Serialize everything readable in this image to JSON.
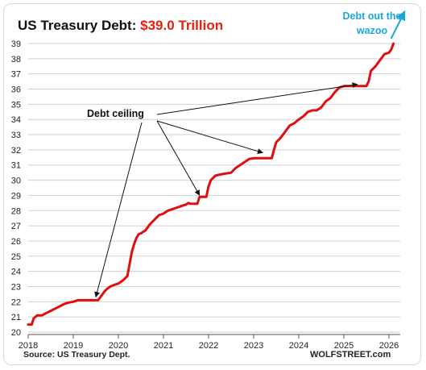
{
  "title": {
    "prefix": "US Treasury Debt: ",
    "value": "$39.0 Trillion"
  },
  "source": "Source: US Treasury Dept.",
  "brand": "WOLFSTREET.com",
  "colors": {
    "line": "#e00e0e",
    "title_value": "#e8200f",
    "wazoo": "#1aa8d8",
    "arrow": "#111111",
    "grid": "#d0d0d0"
  },
  "chart_data": {
    "type": "line",
    "title": "US Treasury Debt: $39.0 Trillion",
    "xlabel": "",
    "ylabel": "",
    "xlim": [
      2018,
      2026.25
    ],
    "ylim": [
      20,
      39
    ],
    "xticks": [
      2018,
      2019,
      2020,
      2021,
      2022,
      2023,
      2024,
      2025,
      2026
    ],
    "yticks": [
      20,
      21,
      22,
      23,
      24,
      25,
      26,
      27,
      28,
      29,
      30,
      31,
      32,
      33,
      34,
      35,
      36,
      37,
      38,
      39
    ],
    "grid": "horizontal",
    "series": [
      {
        "x": [
          2018.0,
          2018.08,
          2018.12,
          2018.2,
          2018.3,
          2018.4,
          2018.5,
          2018.6,
          2018.7,
          2018.8,
          2018.9,
          2019.0,
          2019.1,
          2019.2,
          2019.35,
          2019.55,
          2019.6,
          2019.7,
          2019.75,
          2019.82,
          2019.9,
          2020.0,
          2020.1,
          2020.2,
          2020.25,
          2020.3,
          2020.35,
          2020.4,
          2020.45,
          2020.5,
          2020.6,
          2020.7,
          2020.8,
          2020.9,
          2021.0,
          2021.1,
          2021.2,
          2021.3,
          2021.4,
          2021.5,
          2021.55,
          2021.6,
          2021.75,
          2021.8,
          2021.85,
          2021.95,
          2022.0,
          2022.05,
          2022.15,
          2022.3,
          2022.5,
          2022.6,
          2022.7,
          2022.8,
          2022.9,
          2023.0,
          2023.2,
          2023.4,
          2023.45,
          2023.5,
          2023.6,
          2023.7,
          2023.8,
          2023.9,
          2024.0,
          2024.1,
          2024.2,
          2024.3,
          2024.4,
          2024.5,
          2024.6,
          2024.7,
          2024.8,
          2024.9,
          2025.0,
          2025.2,
          2025.5,
          2025.55,
          2025.6,
          2025.7,
          2025.8,
          2025.9,
          2026.0,
          2026.05,
          2026.1
        ],
        "y": [
          20.5,
          20.5,
          20.9,
          21.1,
          21.1,
          21.25,
          21.4,
          21.55,
          21.7,
          21.85,
          21.95,
          22.0,
          22.1,
          22.1,
          22.1,
          22.1,
          22.3,
          22.7,
          22.85,
          23.0,
          23.1,
          23.2,
          23.4,
          23.7,
          24.5,
          25.3,
          25.8,
          26.2,
          26.45,
          26.5,
          26.7,
          27.1,
          27.4,
          27.7,
          27.8,
          28.0,
          28.1,
          28.2,
          28.3,
          28.4,
          28.5,
          28.45,
          28.45,
          28.9,
          28.9,
          28.9,
          29.6,
          30.0,
          30.3,
          30.4,
          30.5,
          30.8,
          31.0,
          31.2,
          31.4,
          31.45,
          31.45,
          31.45,
          32.0,
          32.5,
          32.8,
          33.2,
          33.6,
          33.75,
          34.0,
          34.2,
          34.5,
          34.6,
          34.6,
          34.8,
          35.2,
          35.4,
          35.8,
          36.1,
          36.2,
          36.2,
          36.2,
          36.5,
          37.2,
          37.5,
          37.9,
          38.3,
          38.4,
          38.6,
          39.0
        ]
      }
    ],
    "annotations": [
      {
        "text": "Debt ceiling",
        "targets": [
          [
            2019.5,
            22.1
          ],
          [
            2021.8,
            28.8
          ],
          [
            2023.2,
            31.6
          ],
          [
            2025.3,
            36.1
          ]
        ]
      },
      {
        "text_line1": "Debt out the",
        "text_line2": "wazoo"
      }
    ]
  }
}
